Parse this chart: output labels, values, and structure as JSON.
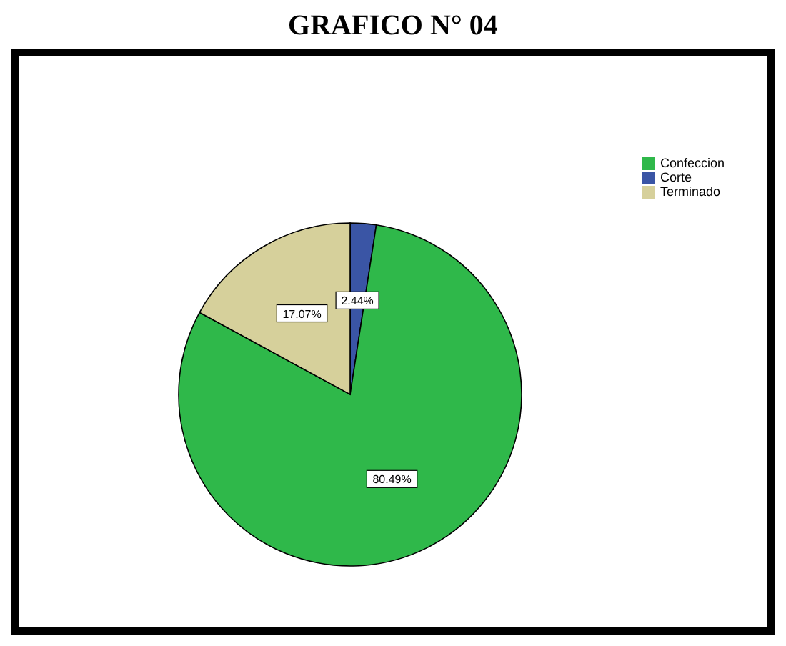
{
  "chart_data": {
    "type": "pie",
    "title": "GRAFICO N° 04",
    "categories": [
      "Corte",
      "Confeccion",
      "Terminado"
    ],
    "values": [
      2.44,
      80.49,
      17.07
    ],
    "value_labels": [
      "2.44%",
      "80.49%",
      "17.07%"
    ],
    "colors": [
      "#3a55a5",
      "#2fb84a",
      "#d6d09b"
    ],
    "legend": "top right"
  }
}
